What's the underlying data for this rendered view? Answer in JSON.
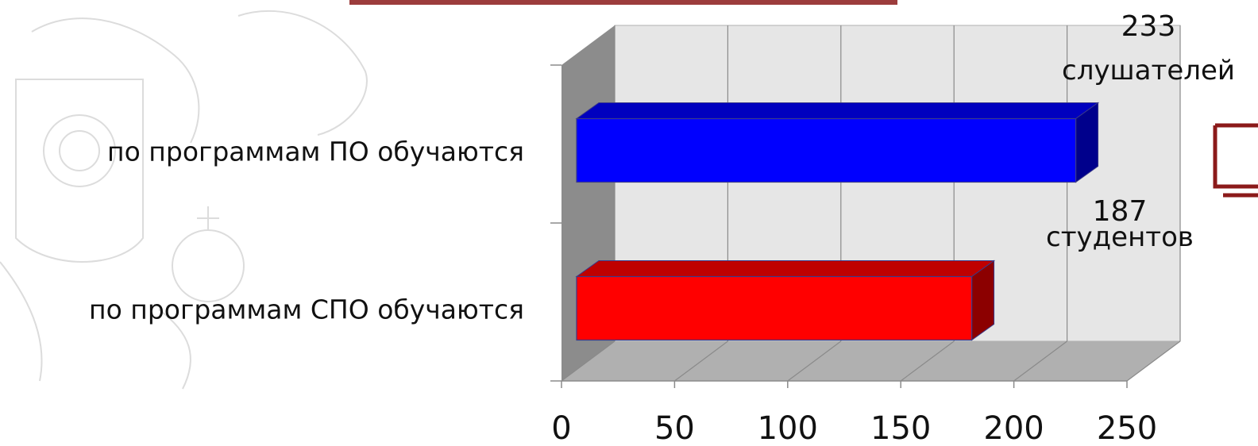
{
  "chart_data": {
    "type": "bar",
    "orientation": "horizontal",
    "three_d": true,
    "categories": [
      "по программам ПО обучаются",
      "по программам СПО обучаются"
    ],
    "values": [
      233,
      187
    ],
    "data_labels": [
      {
        "value": "233",
        "unit": "слушателей"
      },
      {
        "value": "187",
        "unit": "студентов"
      }
    ],
    "bar_colors": [
      "#0000ff",
      "#ff0000"
    ],
    "xlim": [
      0,
      250
    ],
    "x_ticks": [
      "0",
      "50",
      "100",
      "150",
      "200",
      "250"
    ],
    "grid": true,
    "title": "",
    "xlabel": "",
    "ylabel": ""
  },
  "colors": {
    "wall": "#e6e6e6",
    "side_wall": "#8c8c8c",
    "floor": "#b0b0b0",
    "gridline": "#8a8a8a",
    "decor": "#8b1a1a"
  }
}
